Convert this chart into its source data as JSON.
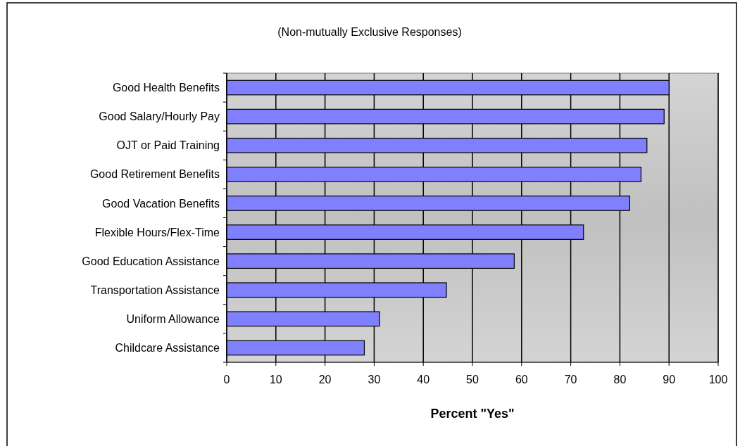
{
  "chart_data": {
    "type": "bar",
    "orientation": "horizontal",
    "subtitle": "(Non-mutually Exclusive Responses)",
    "xlabel": "Percent \"Yes\"",
    "categories": [
      "Good Health Benefits",
      "Good Salary/Hourly Pay",
      "OJT or Paid Training",
      "Good Retirement Benefits",
      "Good Vacation Benefits",
      "Flexible Hours/Flex-Time",
      "Good Education Assistance",
      "Transportation Assistance",
      "Uniform Allowance",
      "Childcare Assistance"
    ],
    "values": [
      90,
      89,
      85.5,
      84.3,
      82,
      72.6,
      58.5,
      44.7,
      31.1,
      28
    ],
    "color": "#8080ff",
    "xlim": [
      0,
      100
    ],
    "xticks": [
      0,
      10,
      20,
      30,
      40,
      50,
      60,
      70,
      80,
      90,
      100
    ],
    "grid": "x"
  }
}
